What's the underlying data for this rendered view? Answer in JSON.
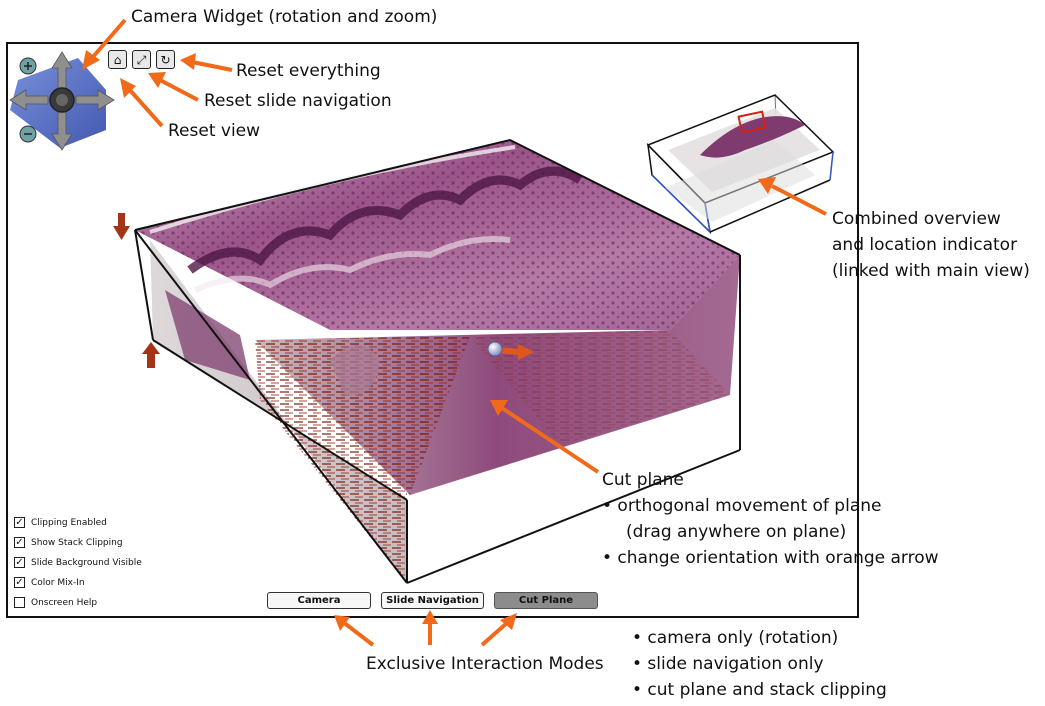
{
  "annotations": {
    "camera_widget": "Camera Widget (rotation and zoom)",
    "reset_everything": "Reset everything",
    "reset_slide_navigation": "Reset slide navigation",
    "reset_view": "Reset view",
    "overview_line1": "Combined overview",
    "overview_line2": "and location indicator",
    "overview_line3": "(linked with main view)",
    "cut_plane_title": "Cut plane",
    "cut_plane_bullet1": "• orthogonal movement of plane",
    "cut_plane_bullet1b": "(drag anywhere on plane)",
    "cut_plane_bullet2": "• change orientation with orange arrow",
    "modes_title": "Exclusive Interaction Modes",
    "modes_bullets": [
      "• camera only (rotation)",
      "• slide navigation only",
      "• cut plane and stack clipping"
    ]
  },
  "toolbar": {
    "home_icon": "home-icon",
    "expand_icon": "expand-icon",
    "reset_icon": "reset-icon"
  },
  "modes": [
    {
      "label": "Camera",
      "active": false
    },
    {
      "label": "Slide Navigation",
      "active": false
    },
    {
      "label": "Cut Plane",
      "active": true
    }
  ],
  "options": [
    {
      "label": "Clipping Enabled",
      "checked": true
    },
    {
      "label": "Show Stack Clipping",
      "checked": true
    },
    {
      "label": "Slide Background Visible",
      "checked": true
    },
    {
      "label": "Color Mix-In",
      "checked": true
    },
    {
      "label": "Onscreen Help",
      "checked": false
    }
  ],
  "colors": {
    "annotation_arrow": "#f06a1a",
    "tissue_purple": "#8a3f73",
    "tissue_red": "#8c1f14",
    "active_mode": "#8c8c8c"
  }
}
